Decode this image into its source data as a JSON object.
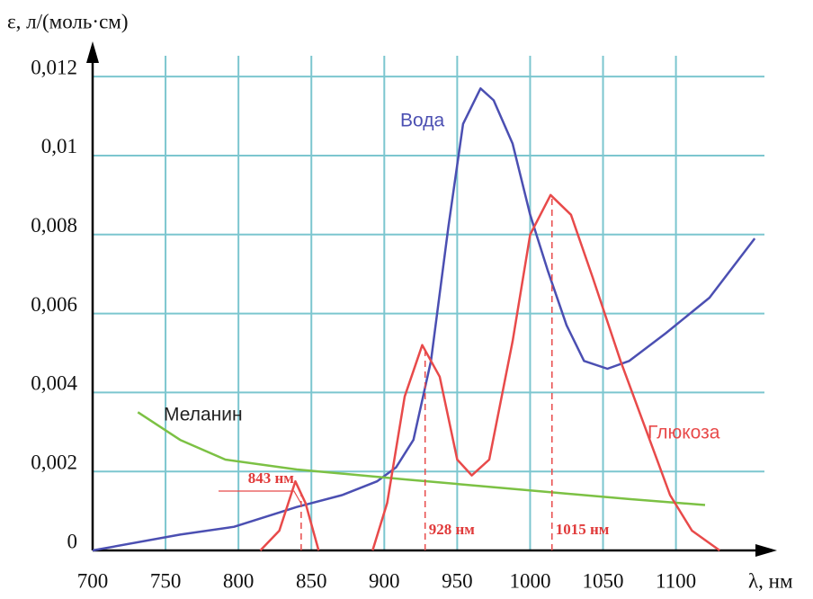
{
  "chart_data": {
    "type": "line",
    "y_label": "ε, л/(моль·см)",
    "x_label": "λ, нм",
    "xlim": [
      700,
      1165
    ],
    "ylim": [
      0,
      0.0128
    ],
    "xticks": [
      700,
      750,
      800,
      850,
      900,
      950,
      1000,
      1050,
      1100
    ],
    "yticks": [
      0,
      {
        "value": 0.002,
        "label": "0,002"
      },
      {
        "value": 0.004,
        "label": "0,004"
      },
      {
        "value": 0.006,
        "label": "0,006"
      },
      {
        "value": 0.008,
        "label": "0,008"
      },
      {
        "value": 0.01,
        "label": "0,01"
      },
      {
        "value": 0.012,
        "label": "0,012"
      }
    ],
    "grid": true,
    "series": [
      {
        "name": "Вода",
        "color": "#4b4fb2",
        "x": [
          700,
          760,
          797,
          840,
          871,
          895,
          908,
          920,
          932,
          944,
          954,
          966,
          975,
          988,
          1000,
          1012,
          1025,
          1037,
          1053,
          1068,
          1093,
          1123,
          1154
        ],
        "values": [
          0,
          0.0004,
          0.0006,
          0.0011,
          0.0014,
          0.00175,
          0.0021,
          0.0028,
          0.0048,
          0.0082,
          0.0108,
          0.0117,
          0.0114,
          0.0103,
          0.0085,
          0.0071,
          0.0057,
          0.0048,
          0.0046,
          0.0048,
          0.0055,
          0.0064,
          0.0079
        ]
      },
      {
        "name": "Меланин",
        "color": "#7cc144",
        "x": [
          731,
          760,
          791,
          840,
          914,
          1006,
          1068,
          1120
        ],
        "values": [
          0.0035,
          0.0028,
          0.0023,
          0.00205,
          0.0018,
          0.0015,
          0.0013,
          0.00115
        ]
      },
      {
        "name": "Глюкоза",
        "color": "#e84a4a",
        "x": [
          815,
          828,
          839,
          846,
          855,
          870,
          892,
          902,
          914,
          926,
          938,
          950,
          960,
          972,
          988,
          1000,
          1014,
          1028,
          1043,
          1062,
          1080,
          1096,
          1111,
          1130
        ],
        "values": [
          0,
          0.0005,
          0.00175,
          0.0012,
          0,
          null,
          0,
          0.0012,
          0.0039,
          0.0052,
          0.0044,
          0.0023,
          0.0019,
          0.0023,
          0.0053,
          0.008,
          0.009,
          0.0085,
          0.0069,
          0.0048,
          0.003,
          0.0014,
          0.0005,
          0
        ]
      }
    ],
    "annotations": [
      {
        "x": 843,
        "label": "843 нм"
      },
      {
        "x": 928,
        "label": "928 нм"
      },
      {
        "x": 1015,
        "label": "1015 нм"
      }
    ]
  }
}
